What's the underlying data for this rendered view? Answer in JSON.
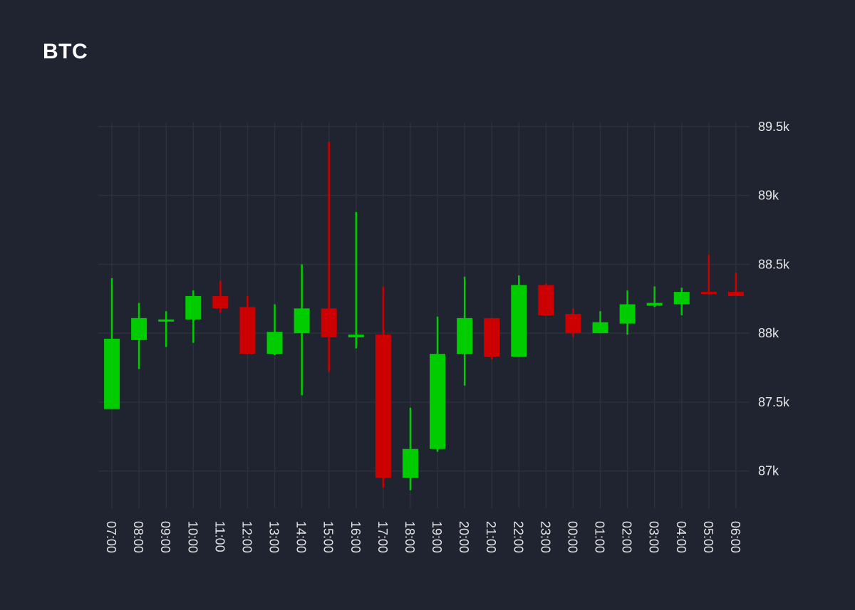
{
  "title": "BTC",
  "colors": {
    "background": "#1f2430",
    "grid": "#2c313c",
    "text": "#e6e6e6",
    "up": "#00cc00",
    "down": "#cc0000"
  },
  "chart_data": {
    "type": "candlestick",
    "title": "BTC",
    "xlabel": "",
    "ylabel": "",
    "ylim": [
      86730,
      89530
    ],
    "grid": true,
    "y_axis_side": "right",
    "x_tick_orientation": "vertical",
    "y_ticks": [
      87000,
      87500,
      88000,
      88500,
      89000,
      89500
    ],
    "y_tick_labels": [
      "87k",
      "87.5k",
      "88k",
      "88.5k",
      "89k",
      "89.5k"
    ],
    "categories": [
      "07:00",
      "08:00",
      "09:00",
      "10:00",
      "11:00",
      "12:00",
      "13:00",
      "14:00",
      "15:00",
      "16:00",
      "17:00",
      "18:00",
      "19:00",
      "20:00",
      "21:00",
      "22:00",
      "23:00",
      "00:00",
      "01:00",
      "02:00",
      "03:00",
      "04:00",
      "05:00",
      "06:00"
    ],
    "candles": [
      {
        "time": "07:00",
        "open": 87450,
        "high": 88400,
        "low": 87450,
        "close": 87960
      },
      {
        "time": "08:00",
        "open": 87950,
        "high": 88220,
        "low": 87740,
        "close": 88110
      },
      {
        "time": "09:00",
        "open": 88090,
        "high": 88160,
        "low": 87900,
        "close": 88100
      },
      {
        "time": "10:00",
        "open": 88100,
        "high": 88310,
        "low": 87930,
        "close": 88270
      },
      {
        "time": "11:00",
        "open": 88270,
        "high": 88380,
        "low": 88150,
        "close": 88180
      },
      {
        "time": "12:00",
        "open": 88190,
        "high": 88270,
        "low": 87850,
        "close": 87850
      },
      {
        "time": "13:00",
        "open": 87850,
        "high": 88210,
        "low": 87840,
        "close": 88010
      },
      {
        "time": "14:00",
        "open": 88000,
        "high": 88500,
        "low": 87550,
        "close": 88180
      },
      {
        "time": "15:00",
        "open": 88180,
        "high": 89390,
        "low": 87720,
        "close": 87970
      },
      {
        "time": "16:00",
        "open": 87970,
        "high": 88880,
        "low": 87890,
        "close": 87990
      },
      {
        "time": "17:00",
        "open": 87990,
        "high": 88340,
        "low": 86880,
        "close": 86950
      },
      {
        "time": "18:00",
        "open": 86950,
        "high": 87460,
        "low": 86860,
        "close": 87160
      },
      {
        "time": "19:00",
        "open": 87160,
        "high": 88120,
        "low": 87140,
        "close": 87850
      },
      {
        "time": "20:00",
        "open": 87850,
        "high": 88410,
        "low": 87620,
        "close": 88110
      },
      {
        "time": "21:00",
        "open": 88110,
        "high": 88110,
        "low": 87810,
        "close": 87830
      },
      {
        "time": "22:00",
        "open": 87830,
        "high": 88420,
        "low": 87830,
        "close": 88350
      },
      {
        "time": "23:00",
        "open": 88350,
        "high": 88360,
        "low": 88130,
        "close": 88130
      },
      {
        "time": "00:00",
        "open": 88140,
        "high": 88180,
        "low": 87970,
        "close": 88000
      },
      {
        "time": "01:00",
        "open": 88000,
        "high": 88160,
        "low": 88000,
        "close": 88080
      },
      {
        "time": "02:00",
        "open": 88070,
        "high": 88310,
        "low": 87990,
        "close": 88210
      },
      {
        "time": "03:00",
        "open": 88200,
        "high": 88340,
        "low": 88190,
        "close": 88220
      },
      {
        "time": "04:00",
        "open": 88210,
        "high": 88330,
        "low": 88130,
        "close": 88300
      },
      {
        "time": "05:00",
        "open": 88300,
        "high": 88570,
        "low": 88280,
        "close": 88290
      },
      {
        "time": "06:00",
        "open": 88300,
        "high": 88440,
        "low": 88270,
        "close": 88270
      }
    ]
  }
}
